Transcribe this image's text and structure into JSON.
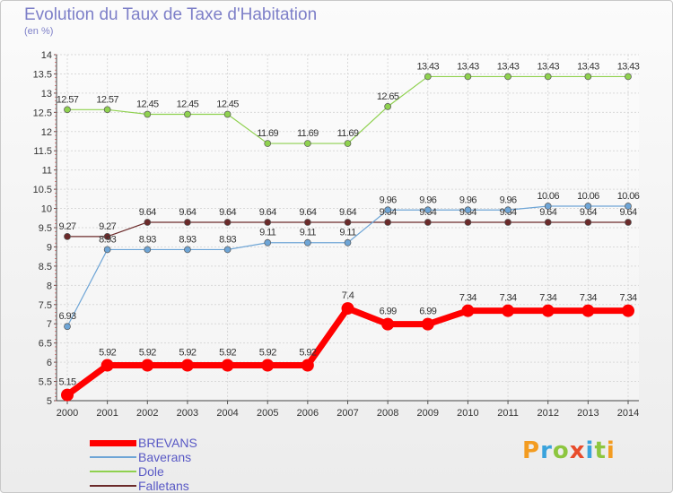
{
  "title": "Evolution du Taux de Taxe d'Habitation",
  "subtitle": "(en %)",
  "logo": {
    "text": "Proxiti",
    "letters": [
      {
        "ch": "P",
        "color": "#f39c21"
      },
      {
        "ch": "r",
        "color": "#3aa3dc"
      },
      {
        "ch": "o",
        "color": "#8dc63f"
      },
      {
        "ch": "x",
        "color": "#e84c2b"
      },
      {
        "ch": "i",
        "color": "#3aa3dc"
      },
      {
        "ch": "t",
        "color": "#8dc63f"
      },
      {
        "ch": "i",
        "color": "#f39c21"
      }
    ]
  },
  "chart_data": {
    "type": "line",
    "title": "Evolution du Taux de Taxe d'Habitation",
    "ylabel": "(en %)",
    "xlabel": "",
    "x": [
      "2000",
      "2001",
      "2002",
      "2003",
      "2004",
      "2005",
      "2006",
      "2007",
      "2008",
      "2009",
      "2010",
      "2011",
      "2012",
      "2013",
      "2014"
    ],
    "ylim": [
      5,
      14
    ],
    "yticks": [
      "5",
      "5.5",
      "6",
      "6.5",
      "7",
      "7.5",
      "8",
      "8.5",
      "9",
      "9.5",
      "10",
      "10.5",
      "11",
      "11.5",
      "12",
      "12.5",
      "13",
      "13.5",
      "14"
    ],
    "grid": true,
    "legend": "bottom-left",
    "series": [
      {
        "name": "Dole",
        "color": "#8fd14f",
        "width": 1.2,
        "dot": 3.5,
        "values": [
          12.57,
          12.57,
          12.45,
          12.45,
          12.45,
          11.69,
          11.69,
          11.69,
          12.65,
          13.43,
          13.43,
          13.43,
          13.43,
          13.43,
          13.43
        ],
        "labels": [
          "12.57",
          "12.57",
          "12.45",
          "12.45",
          "12.45",
          "11.69",
          "11.69",
          "11.69",
          "12.65",
          "13.43",
          "13.43",
          "13.43",
          "13.43",
          "13.43",
          "13.43"
        ]
      },
      {
        "name": "Falletans",
        "color": "#6b2a2a",
        "width": 1.2,
        "dot": 3.5,
        "values": [
          9.27,
          9.27,
          9.64,
          9.64,
          9.64,
          9.64,
          9.64,
          9.64,
          9.64,
          9.64,
          9.64,
          9.64,
          9.64,
          9.64,
          9.64
        ],
        "labels": [
          "9.27",
          "9.27",
          "9.64",
          "9.64",
          "9.64",
          "9.64",
          "9.64",
          "9.64",
          "9.64",
          "9.64",
          "9.64",
          "9.64",
          "9.64",
          "9.64",
          "9.64"
        ]
      },
      {
        "name": "Baverans",
        "color": "#6ea5d6",
        "width": 1.2,
        "dot": 3.5,
        "values": [
          6.93,
          8.93,
          8.93,
          8.93,
          8.93,
          9.11,
          9.11,
          9.11,
          9.96,
          9.96,
          9.96,
          9.96,
          10.06,
          10.06,
          10.06
        ],
        "labels": [
          "6.93",
          "8.93",
          "8.93",
          "8.93",
          "8.93",
          "9.11",
          "9.11",
          "9.11",
          "9.96",
          "9.96",
          "9.96",
          "9.96",
          "10.06",
          "10.06",
          "10.06"
        ]
      },
      {
        "name": "BREVANS",
        "color": "#ff0000",
        "width": 7,
        "dot": 7,
        "values": [
          5.15,
          5.92,
          5.92,
          5.92,
          5.92,
          5.92,
          5.92,
          7.4,
          6.99,
          6.99,
          7.34,
          7.34,
          7.34,
          7.34,
          7.34
        ],
        "labels": [
          "5.15",
          "5.92",
          "5.92",
          "5.92",
          "5.92",
          "5.92",
          "5.92",
          "7.4",
          "6.99",
          "6.99",
          "7.34",
          "7.34",
          "7.34",
          "7.34",
          "7.34"
        ]
      }
    ],
    "legend_order": [
      "BREVANS",
      "Baverans",
      "Dole",
      "Falletans"
    ]
  }
}
